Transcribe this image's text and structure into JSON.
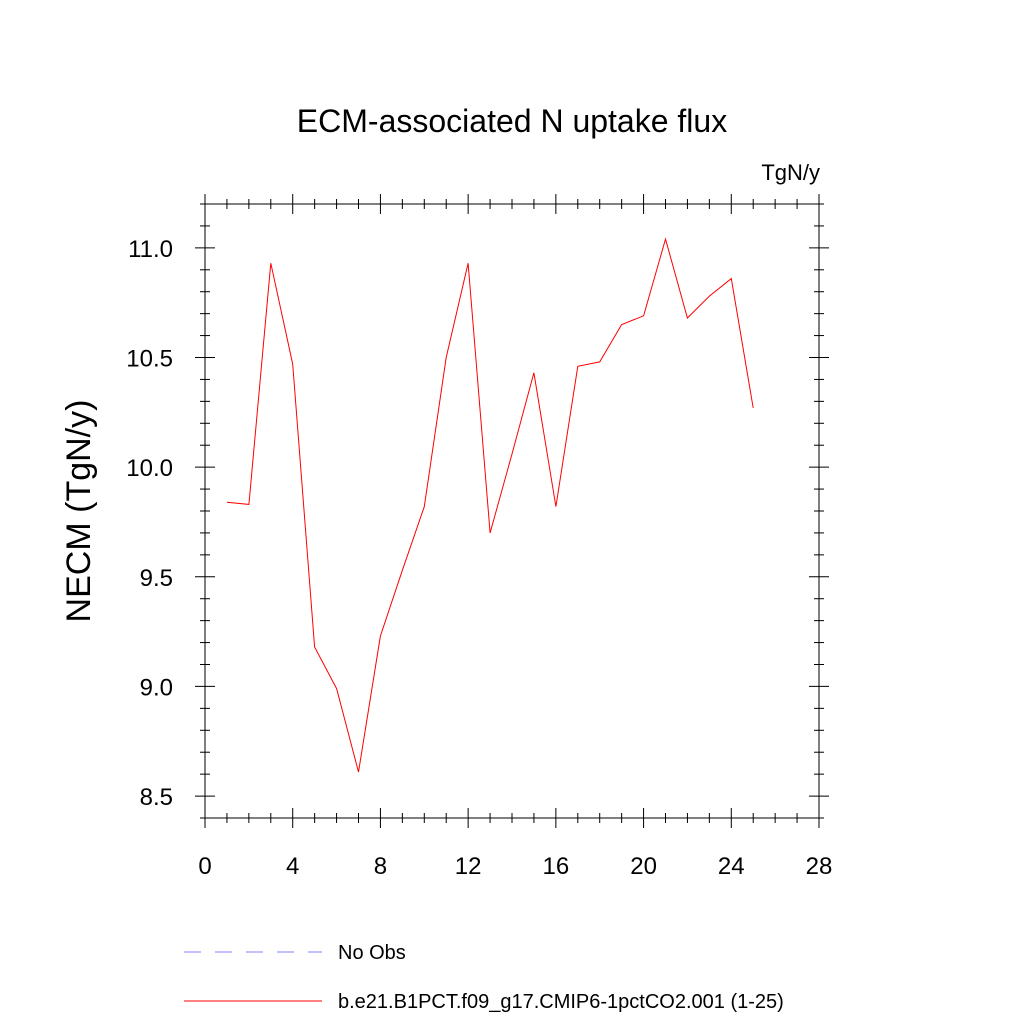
{
  "chart_data": {
    "type": "line",
    "title": "ECM-associated N uptake flux",
    "units_label": "TgN/y",
    "xlabel": "",
    "ylabel": "NECM  (TgN/y)",
    "xlim": [
      0,
      28
    ],
    "ylim": [
      8.4,
      11.2
    ],
    "x_ticks": [
      0,
      4,
      8,
      12,
      16,
      20,
      24,
      28
    ],
    "x_tick_labels": [
      "0",
      "4",
      "8",
      "12",
      "16",
      "20",
      "24",
      "28"
    ],
    "y_ticks": [
      8.5,
      9.0,
      9.5,
      10.0,
      10.5,
      11.0
    ],
    "y_tick_labels": [
      "8.5",
      "9.0",
      "9.5",
      "10.0",
      "10.5",
      "11.0"
    ],
    "grid": false,
    "legend_position": "bottom",
    "series": [
      {
        "name": "b.e21.B1PCT.f09_g17.CMIP6-1pctCO2.001 (1-25)",
        "color": "#ff0000",
        "dash": "solid",
        "x": [
          1,
          2,
          3,
          4,
          5,
          6,
          7,
          8,
          9,
          10,
          11,
          12,
          13,
          14,
          15,
          16,
          17,
          18,
          19,
          20,
          21,
          22,
          23,
          24,
          25
        ],
        "y": [
          9.84,
          9.83,
          10.93,
          10.47,
          9.18,
          8.99,
          8.61,
          9.23,
          9.53,
          9.82,
          10.5,
          10.93,
          9.7,
          10.06,
          10.43,
          9.82,
          10.46,
          10.48,
          10.65,
          10.69,
          11.04,
          10.68,
          10.78,
          10.86,
          10.27
        ]
      }
    ],
    "legend": [
      {
        "label": "No Obs",
        "color": "#8080ff",
        "dash": "dashed"
      },
      {
        "label": "b.e21.B1PCT.f09_g17.CMIP6-1pctCO2.001 (1-25)",
        "color": "#ff0000",
        "dash": "solid"
      }
    ]
  }
}
